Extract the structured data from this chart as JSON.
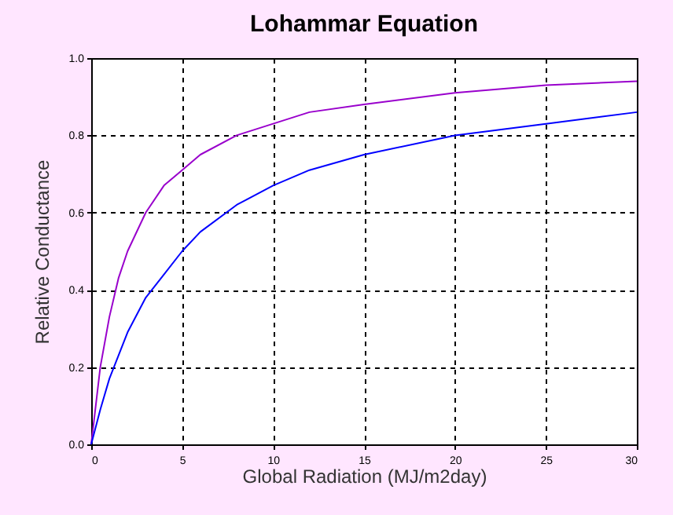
{
  "chart_data": {
    "type": "line",
    "title": "Lohammar Equation",
    "xlabel": "Global Radiation (MJ/m2day)",
    "ylabel": "Relative Conductance",
    "x": [
      0,
      0.5,
      1,
      1.5,
      2,
      3,
      4,
      5,
      6,
      8,
      10,
      12,
      15,
      20,
      25,
      30
    ],
    "series": [
      {
        "color": "#9900cc",
        "values": [
          0,
          0.2,
          0.33,
          0.43,
          0.5,
          0.6,
          0.67,
          0.71,
          0.75,
          0.8,
          0.83,
          0.86,
          0.88,
          0.91,
          0.93,
          0.94
        ]
      },
      {
        "color": "#0000ff",
        "values": [
          0,
          0.09,
          0.17,
          0.23,
          0.29,
          0.38,
          0.44,
          0.5,
          0.55,
          0.62,
          0.67,
          0.71,
          0.75,
          0.8,
          0.83,
          0.86
        ]
      }
    ],
    "xlim": [
      0,
      30
    ],
    "ylim": [
      0,
      1
    ],
    "xticks": [
      0,
      5,
      10,
      15,
      20,
      25,
      30
    ],
    "yticks": [
      {
        "value": 0,
        "label": "0.0"
      },
      {
        "value": 0.2,
        "label": "0.2"
      },
      {
        "value": 0.4,
        "label": "0.4"
      },
      {
        "value": 0.6,
        "label": "0.6"
      },
      {
        "value": 0.8,
        "label": "0.8"
      },
      {
        "value": 1,
        "label": "1.0"
      }
    ],
    "grid": true,
    "marker": "none",
    "line_style": "solid"
  }
}
